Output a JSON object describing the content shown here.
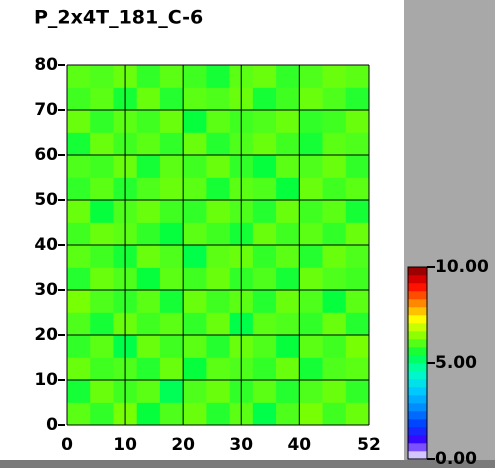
{
  "chart_data": {
    "type": "heatmap",
    "title": "P_2x4T_181_C-6",
    "xlim": [
      0,
      52
    ],
    "ylim": [
      0,
      80
    ],
    "xticks": [
      0,
      10,
      20,
      30,
      40,
      52
    ],
    "yticks": [
      0,
      10,
      20,
      30,
      40,
      50,
      60,
      70,
      80
    ],
    "grid": true,
    "zlim": [
      0,
      10
    ],
    "colorbar_ticks": [
      {
        "value": 0,
        "label": "0.00"
      },
      {
        "value": 5,
        "label": "5.00"
      },
      {
        "value": 10,
        "label": "10.00"
      }
    ],
    "colormap": [
      "#ffffff",
      "#4000ff",
      "#0040ff",
      "#0090ff",
      "#00d0ff",
      "#00ffc0",
      "#00ff40",
      "#80ff00",
      "#ffff00",
      "#ff8000",
      "#ff0000",
      "#800000"
    ],
    "z": [
      [
        6.1,
        5.8,
        6.3,
        5.5,
        6.0,
        6.2,
        5.7,
        6.1,
        5.4,
        6.0,
        6.3,
        5.9,
        6.2
      ],
      [
        5.6,
        6.2,
        5.9,
        6.1,
        5.3,
        6.0,
        6.2,
        5.8,
        6.1,
        5.7,
        6.0,
        6.2,
        5.8
      ],
      [
        6.2,
        5.9,
        6.0,
        5.7,
        6.2,
        5.5,
        6.1,
        6.0,
        5.8,
        6.2,
        5.6,
        6.0,
        6.1
      ],
      [
        5.8,
        6.1,
        5.4,
        6.2,
        5.9,
        6.1,
        5.7,
        6.2,
        6.0,
        5.5,
        6.1,
        5.9,
        6.3
      ],
      [
        6.0,
        5.6,
        6.2,
        5.9,
        6.1,
        5.8,
        6.2,
        5.4,
        6.1,
        6.0,
        5.8,
        6.2,
        5.7
      ],
      [
        6.3,
        6.0,
        5.8,
        6.1,
        5.6,
        6.2,
        5.9,
        6.1,
        5.7,
        6.2,
        6.0,
        5.5,
        6.1
      ],
      [
        5.7,
        6.2,
        6.0,
        5.5,
        6.1,
        5.9,
        6.2,
        5.8,
        6.0,
        5.6,
        6.2,
        6.0,
        5.9
      ],
      [
        6.1,
        5.9,
        5.6,
        6.2,
        6.0,
        5.4,
        6.1,
        6.2,
        5.8,
        6.1,
        5.7,
        6.2,
        6.0
      ],
      [
        5.9,
        6.2,
        6.1,
        5.8,
        5.5,
        6.1,
        5.9,
        5.6,
        6.2,
        5.9,
        6.1,
        5.8,
        6.2
      ],
      [
        6.2,
        5.5,
        6.0,
        6.2,
        5.9,
        5.8,
        6.2,
        6.0,
        5.7,
        6.2,
        5.9,
        6.1,
        5.6
      ],
      [
        5.8,
        6.1,
        5.7,
        6.0,
        6.2,
        6.1,
        5.6,
        6.1,
        6.0,
        5.5,
        6.2,
        5.9,
        6.1
      ],
      [
        6.0,
        5.9,
        6.2,
        5.6,
        6.1,
        5.9,
        6.2,
        5.8,
        5.5,
        6.1,
        6.0,
        6.2,
        5.8
      ],
      [
        5.6,
        6.2,
        5.9,
        6.1,
        5.8,
        6.2,
        5.7,
        6.0,
        6.2,
        5.9,
        5.6,
        6.1,
        6.0
      ],
      [
        6.2,
        5.8,
        6.1,
        5.9,
        6.2,
        5.5,
        6.1,
        5.9,
        6.0,
        6.2,
        5.8,
        5.9,
        6.2
      ],
      [
        5.9,
        6.1,
        5.6,
        6.2,
        5.7,
        6.1,
        6.0,
        6.2,
        5.6,
        5.9,
        6.2,
        6.0,
        5.7
      ],
      [
        6.1,
        6.0,
        6.2,
        5.8,
        6.1,
        5.9,
        5.6,
        6.1,
        6.2,
        5.8,
        6.0,
        6.2,
        6.1
      ]
    ]
  }
}
